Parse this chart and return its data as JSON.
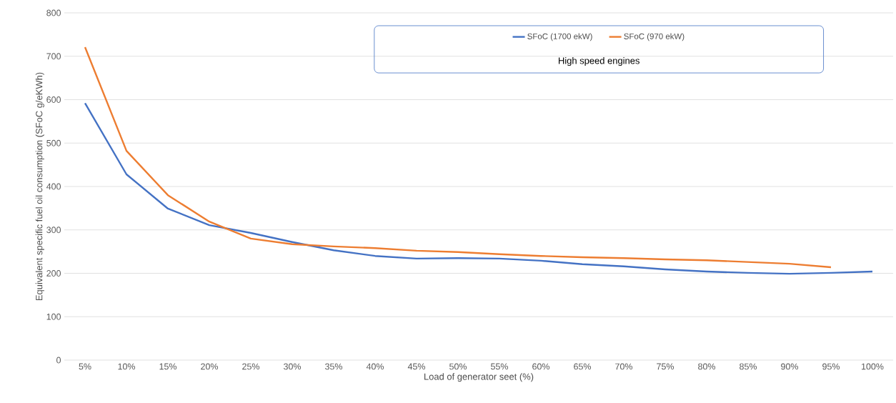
{
  "chart_data": {
    "type": "line",
    "xlabel": "Load of generator seet (%)",
    "ylabel": "Equivalent specific fuel oil consumption (SFoC g/eKWh)",
    "legend_title": "High speed engines",
    "categories": [
      "5%",
      "10%",
      "15%",
      "20%",
      "25%",
      "30%",
      "35%",
      "40%",
      "45%",
      "50%",
      "55%",
      "60%",
      "65%",
      "70%",
      "75%",
      "80%",
      "85%",
      "90%",
      "95%",
      "100%"
    ],
    "series": [
      {
        "name": "SFoC (1700 ekW)",
        "color": "#4472c4",
        "values": [
          592,
          428,
          349,
          311,
          293,
          272,
          253,
          240,
          234,
          235,
          234,
          229,
          221,
          216,
          209,
          204,
          201,
          199,
          201,
          204
        ]
      },
      {
        "name": "SFoC (970 ekW)",
        "color": "#ed7d31",
        "values": [
          721,
          482,
          380,
          319,
          280,
          267,
          262,
          258,
          252,
          249,
          244,
          240,
          237,
          235,
          232,
          230,
          226,
          222,
          214,
          null
        ]
      }
    ],
    "ylim": [
      0,
      800
    ],
    "yticks": [
      0,
      100,
      200,
      300,
      400,
      500,
      600,
      700,
      800
    ],
    "grid": "y",
    "legend": "top right"
  }
}
